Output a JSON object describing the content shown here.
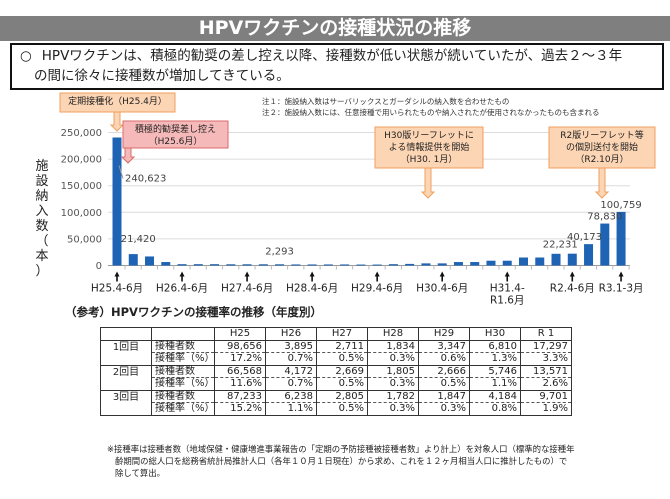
{
  "title": "HPVワクチンの接種状況の推移",
  "summary": {
    "bullet": "○",
    "line1": "HPVワクチンは、積極的勧奨の差し控え以降、接種数が低い状態が続いていたが、過去２～３年",
    "line2": "の間に徐々に接種数が増加してきている。"
  },
  "notes": [
    "注１：施設納入数はサーバリックスとガーダシルの納入数を合わせたもの",
    "注２：施設納入数には、任意接種で用いられたものや納入されたが使用されなかったものも含まれる"
  ],
  "callouts": {
    "routine": "定期接種化（H25.4月）",
    "suspend": [
      "積極的勧奨差し控え",
      "（H25.6月）"
    ],
    "h30": [
      "H30版リーフレットに",
      "よる情報提供を開始",
      "（H30. 1月）"
    ],
    "r2": [
      "R2版リーフレット等",
      "の個別送付を開始",
      "（R2.10月）"
    ]
  },
  "chart_data": {
    "type": "bar",
    "ylabel": "施設納入数（本）",
    "ylim": [
      0,
      250000
    ],
    "yticks": [
      "0",
      "50,000",
      "100,000",
      "150,000",
      "200,000",
      "250,000"
    ],
    "grid": true,
    "x_tick_labels": [
      {
        "index": 0,
        "label": [
          "H25.4-6月"
        ]
      },
      {
        "index": 4,
        "label": [
          "H26.4-6月"
        ]
      },
      {
        "index": 8,
        "label": [
          "H27.4-6月"
        ]
      },
      {
        "index": 12,
        "label": [
          "H28.4-6月"
        ]
      },
      {
        "index": 16,
        "label": [
          "H29.4-6月"
        ]
      },
      {
        "index": 20,
        "label": [
          "H30.4-6月"
        ]
      },
      {
        "index": 24,
        "label": [
          "H31.4-",
          "R1.6月"
        ]
      },
      {
        "index": 28,
        "label": [
          "R2.4-6月"
        ]
      },
      {
        "index": 31,
        "label": [
          "R3.1-3月"
        ]
      }
    ],
    "values": [
      240623,
      21420,
      17000,
      6500,
      2500,
      2500,
      2500,
      2300,
      2300,
      2300,
      2293,
      2000,
      2000,
      2000,
      2000,
      1800,
      1800,
      2500,
      3000,
      4000,
      4000,
      6500,
      6500,
      9000,
      9000,
      15000,
      15000,
      22000,
      22231,
      40173,
      78830,
      100759
    ],
    "data_labels": [
      {
        "index": 0,
        "text": "240,623"
      },
      {
        "index": 1,
        "text": "21,420"
      },
      {
        "index": 10,
        "text": "2,293"
      },
      {
        "index": 28,
        "text": "22,231"
      },
      {
        "index": 29,
        "text": "40,173"
      },
      {
        "index": 30,
        "text": "78,830"
      },
      {
        "index": 31,
        "text": "100,759"
      }
    ],
    "color": "#1f64b4"
  },
  "reference_title": "（参考）HPVワクチンの接種率の推移（年度別）",
  "table": {
    "headers": [
      "H25",
      "H26",
      "H27",
      "H28",
      "H29",
      "H30",
      "R 1"
    ],
    "groups": [
      {
        "label": "1回目",
        "rows": [
          {
            "label": "接種者数",
            "values": [
              "98,656",
              "3,895",
              "2,711",
              "1,834",
              "3,347",
              "6,810",
              "17,297"
            ]
          },
          {
            "label": "接種率（%）",
            "values": [
              "17.2%",
              "0.7%",
              "0.5%",
              "0.3%",
              "0.6%",
              "1.3%",
              "3.3%"
            ]
          }
        ]
      },
      {
        "label": "2回目",
        "rows": [
          {
            "label": "接種者数",
            "values": [
              "66,568",
              "4,172",
              "2,669",
              "1,805",
              "2,666",
              "5,746",
              "13,571"
            ]
          },
          {
            "label": "接種率（%）",
            "values": [
              "11.6%",
              "0.7%",
              "0.5%",
              "0.3%",
              "0.5%",
              "1.1%",
              "2.6%"
            ]
          }
        ]
      },
      {
        "label": "3回目",
        "rows": [
          {
            "label": "接種者数",
            "values": [
              "87,233",
              "6,238",
              "2,805",
              "1,782",
              "1,847",
              "4,184",
              "9,701"
            ]
          },
          {
            "label": "接種率（%）",
            "values": [
              "15.2%",
              "1.1%",
              "0.5%",
              "0.3%",
              "0.3%",
              "0.8%",
              "1.9%"
            ]
          }
        ]
      }
    ]
  },
  "footnote": "※接種率は接種者数（地域保健・健康増進事業報告の「定期の予防接種被接種者数」より計上）を対象人口（標準的な接種年齢期間の総人口を総務省統計局推計人口（各年１０月１日現在）から求め、これを１２ヶ月相当人口に推計したもの）で除して算出。"
}
